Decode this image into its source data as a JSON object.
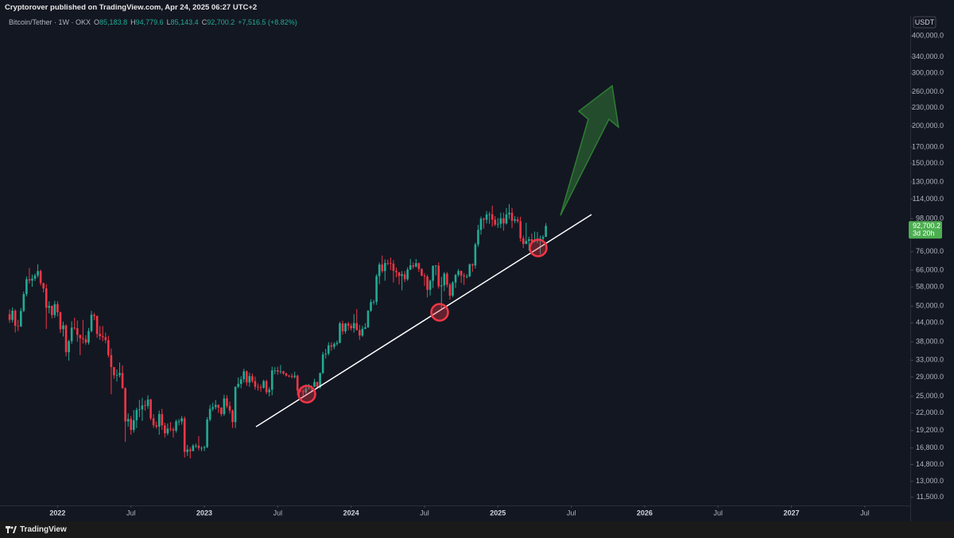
{
  "header": {
    "publisher": "Cryptorover published on TradingView.com, Apr 24, 2025 06:27 UTC+2"
  },
  "footer": {
    "brand": "TradingView"
  },
  "chart_data": {
    "type": "candlestick",
    "title": "Bitcoin/Tether · 1W · OKX",
    "ohlc": [
      {
        "key": "O",
        "label": "85,183.8"
      },
      {
        "key": "H",
        "label": "94,779.6"
      },
      {
        "key": "L",
        "label": "85,143.4"
      },
      {
        "key": "C",
        "label": "92,700.2"
      }
    ],
    "change": "+7,516.5 (+8.82%)",
    "currency": "USDT",
    "price_tag": {
      "label": "92,700.2",
      "countdown": "3d 20h"
    },
    "up_color": "#22ab94",
    "down_color": "#f23645",
    "log_scale": true,
    "grid": false,
    "ylim": [
      10800,
      527000
    ],
    "yticks": [
      {
        "value": 400000,
        "label": "400,000.0"
      },
      {
        "value": 340000,
        "label": "340,000.0"
      },
      {
        "value": 300000,
        "label": "300,000.0"
      },
      {
        "value": 260000,
        "label": "260,000.0"
      },
      {
        "value": 230000,
        "label": "230,000.0"
      },
      {
        "value": 200000,
        "label": "200,000.0"
      },
      {
        "value": 170000,
        "label": "170,000.0"
      },
      {
        "value": 150000,
        "label": "150,000.0"
      },
      {
        "value": 130000,
        "label": "130,000.0"
      },
      {
        "value": 114000,
        "label": "114,000.0"
      },
      {
        "value": 98000,
        "label": "98,000.0"
      },
      {
        "value": 76000,
        "label": "76,000.0"
      },
      {
        "value": 66000,
        "label": "66,000.0"
      },
      {
        "value": 58000,
        "label": "58,000.0"
      },
      {
        "value": 50000,
        "label": "50,000.0"
      },
      {
        "value": 44000,
        "label": "44,000.0"
      },
      {
        "value": 38000,
        "label": "38,000.0"
      },
      {
        "value": 33000,
        "label": "33,000.0"
      },
      {
        "value": 29000,
        "label": "29,000.0"
      },
      {
        "value": 25000,
        "label": "25,000.0"
      },
      {
        "value": 22000,
        "label": "22,000.0"
      },
      {
        "value": 19200,
        "label": "19,200.0"
      },
      {
        "value": 16800,
        "label": "16,800.0"
      },
      {
        "value": 14800,
        "label": "14,800.0"
      },
      {
        "value": 13000,
        "label": "13,000.0"
      },
      {
        "value": 11500,
        "label": "11,500.0"
      }
    ],
    "xlim": [
      -3.4,
      319.1
    ],
    "xticks": [
      {
        "value": 17,
        "label": "2022"
      },
      {
        "value": 43,
        "label": "Jul"
      },
      {
        "value": 69,
        "label": "2023"
      },
      {
        "value": 95,
        "label": "Jul"
      },
      {
        "value": 121,
        "label": "2024"
      },
      {
        "value": 147,
        "label": "Jul"
      },
      {
        "value": 173,
        "label": "2025"
      },
      {
        "value": 199,
        "label": "Jul"
      },
      {
        "value": 225,
        "label": "2026"
      },
      {
        "value": 251,
        "label": "Jul"
      },
      {
        "value": 277,
        "label": "2027"
      },
      {
        "value": 303,
        "label": "Jul"
      }
    ],
    "series": [
      {
        "open": [
          47000,
          45000,
          48300,
          43000,
          42800,
          48200,
          54900,
          61500,
          60900,
          61800,
          63300,
          65500,
          59700,
          57300,
          49400,
          50100,
          46700,
          50800,
          47700,
          41900,
          43100,
          35100,
          38200,
          42400,
          42200,
          40100,
          39100,
          38800,
          37800,
          41300,
          46800,
          46400,
          40400,
          39700,
          39400,
          38500,
          34300,
          31300,
          29400,
          29400,
          29900,
          26600,
          20600,
          21000,
          19300,
          20800,
          22500,
          22600,
          23300,
          23200,
          24400,
          21100,
          20000,
          19800,
          21800,
          20000,
          18800,
          19500,
          19400,
          19200,
          20600,
          20600,
          21100,
          16300,
          16600,
          16400,
          17100,
          17100,
          16800,
          16800,
          16900,
          20900,
          22700,
          23000,
          23400,
          22900,
          21800,
          24600,
          23200,
          22400,
          20500,
          26900,
          27500,
          28500,
          30300,
          27800,
          29200,
          28100,
          26900,
          26800,
          26700,
          28100,
          25800,
          26300,
          30500,
          30500,
          30200,
          30300,
          29800,
          29300,
          29200,
          29000,
          29300,
          26100,
          26000,
          25800,
          26500,
          26600,
          26900,
          27900,
          26800,
          29900,
          34500,
          34700,
          37000,
          36600,
          37400,
          37700,
          43800,
          41200,
          43700,
          43000,
          42200,
          43900,
          41600,
          39900,
          42000,
          42500,
          48300,
          51600,
          51700,
          63000,
          68900,
          65500,
          69700,
          69600,
          69300,
          65600,
          64900,
          63100,
          63900,
          61500,
          66300,
          68500,
          67800,
          69600,
          66600,
          63200,
          62800,
          56700,
          60800,
          68200,
          68300,
          58200,
          58700,
          64200,
          59000,
          54200,
          60000,
          63600,
          65600,
          63300,
          62800,
          62900,
          69000,
          68400,
          80400,
          89900,
          98000,
          97200,
          101200,
          101400,
          97300,
          93700,
          94200,
          98300,
          94500,
          101300,
          102600,
          96500,
          97500,
          96100,
          84300,
          80700,
          82600,
          83700,
          82300,
          82600,
          83100,
          84000,
          85183.8
        ],
        "high": [
          48800,
          49500,
          48800,
          45000,
          49300,
          56000,
          62900,
          67000,
          63700,
          64300,
          69000,
          66300,
          59900,
          59200,
          51900,
          50300,
          52100,
          51900,
          48000,
          44400,
          43500,
          38600,
          44500,
          45800,
          44800,
          40100,
          45000,
          40000,
          42300,
          48200,
          47500,
          46500,
          42900,
          42900,
          40800,
          39800,
          36100,
          31300,
          30700,
          32400,
          31700,
          26800,
          21900,
          21500,
          22500,
          22900,
          24300,
          24700,
          24200,
          25200,
          24500,
          21800,
          20600,
          22400,
          22700,
          20400,
          20300,
          20500,
          19700,
          20900,
          21000,
          21500,
          21400,
          17200,
          16900,
          17300,
          17400,
          18400,
          17000,
          17100,
          21300,
          23400,
          23800,
          24300,
          23500,
          23000,
          25300,
          25200,
          24000,
          22600,
          27000,
          28900,
          29200,
          30900,
          30500,
          30000,
          29800,
          29100,
          27600,
          27400,
          28400,
          28400,
          26800,
          31400,
          31300,
          31400,
          31800,
          30400,
          30000,
          29500,
          29800,
          30200,
          29500,
          26800,
          26400,
          27400,
          27500,
          27200,
          28600,
          28000,
          30000,
          35200,
          36000,
          37900,
          37900,
          37900,
          38400,
          44400,
          44700,
          44000,
          44300,
          43800,
          47000,
          48900,
          43300,
          43000,
          43900,
          48500,
          52800,
          52500,
          64000,
          69900,
          73800,
          71700,
          71600,
          72700,
          71300,
          67300,
          64900,
          65500,
          65500,
          67400,
          71900,
          70000,
          71900,
          70000,
          66900,
          64500,
          63700,
          61400,
          68400,
          68600,
          70000,
          62700,
          65000,
          65000,
          59800,
          60600,
          64100,
          66500,
          65600,
          64500,
          64000,
          69400,
          69500,
          81500,
          93500,
          99600,
          98900,
          104000,
          103300,
          108400,
          100000,
          98500,
          102700,
          102700,
          106400,
          109600,
          106500,
          100000,
          99500,
          99500,
          86000,
          95000,
          85300,
          87500,
          88800,
          88500,
          86100,
          86500,
          94779.6
        ],
        "low": [
          44000,
          44100,
          40800,
          41300,
          42600,
          47800,
          53900,
          59500,
          58000,
          60700,
          62300,
          58600,
          55600,
          42000,
          47300,
          45500,
          45700,
          46200,
          40700,
          39600,
          34000,
          32900,
          37400,
          41700,
          38000,
          34300,
          37500,
          37200,
          37200,
          40900,
          44900,
          39200,
          38600,
          38200,
          37600,
          33700,
          25400,
          28600,
          28000,
          28900,
          26500,
          17600,
          19800,
          18600,
          18900,
          19600,
          21300,
          20700,
          22400,
          22700,
          20800,
          19600,
          19500,
          18600,
          19300,
          18200,
          18500,
          19100,
          18200,
          18900,
          20000,
          20100,
          15600,
          15800,
          15500,
          16400,
          16800,
          16500,
          16400,
          16400,
          16800,
          20600,
          22300,
          22600,
          22000,
          21400,
          21500,
          22800,
          21900,
          19600,
          19600,
          26600,
          26600,
          27800,
          27100,
          26900,
          27700,
          26300,
          26100,
          25900,
          26500,
          25400,
          25000,
          25200,
          29600,
          29500,
          29700,
          29500,
          29100,
          28900,
          28700,
          28700,
          25200,
          25800,
          24900,
          25400,
          26400,
          26000,
          26800,
          26600,
          26500,
          29700,
          33400,
          34200,
          35500,
          35900,
          36900,
          37600,
          40200,
          40500,
          41500,
          41400,
          40800,
          41500,
          38600,
          39500,
          41900,
          42300,
          47800,
          50600,
          50500,
          59200,
          64600,
          60800,
          68500,
          66000,
          60000,
          62400,
          59100,
          56500,
          60200,
          60800,
          66000,
          66600,
          67400,
          65100,
          63000,
          58400,
          53500,
          54300,
          57500,
          63400,
          57200,
          49100,
          56100,
          57800,
          52600,
          53600,
          57500,
          62700,
          59800,
          58900,
          61900,
          62500,
          65200,
          66800,
          78900,
          86700,
          90800,
          94500,
          94200,
          92200,
          92500,
          91300,
          91200,
          89300,
          93700,
          97800,
          91200,
          94700,
          94800,
          82200,
          78200,
          80600,
          76600,
          81300,
          81600,
          81200,
          74500,
          83100,
          85143.4
        ],
        "close": [
          45000,
          48300,
          43000,
          42800,
          48200,
          54900,
          61500,
          60900,
          61800,
          63300,
          65500,
          59700,
          57300,
          49400,
          50100,
          46700,
          50800,
          47700,
          41900,
          43100,
          35100,
          38200,
          42400,
          42200,
          40100,
          39100,
          38800,
          37800,
          41300,
          46800,
          46400,
          40400,
          39700,
          39400,
          38500,
          34300,
          31300,
          29400,
          29400,
          29900,
          26600,
          20600,
          21000,
          19300,
          20800,
          22500,
          22600,
          23300,
          23200,
          24400,
          21100,
          20000,
          19800,
          21800,
          20000,
          18800,
          19500,
          19400,
          19200,
          20600,
          20600,
          21100,
          16300,
          16600,
          16400,
          17100,
          17100,
          16800,
          16800,
          16900,
          20900,
          22700,
          23000,
          23400,
          22900,
          21800,
          24600,
          23200,
          22400,
          20500,
          26900,
          27500,
          28500,
          30300,
          27800,
          29200,
          28100,
          26900,
          26800,
          26700,
          28100,
          25800,
          26300,
          30500,
          30500,
          30200,
          30300,
          29800,
          29300,
          29200,
          29000,
          29300,
          26100,
          26000,
          25800,
          26500,
          26600,
          26900,
          27900,
          26800,
          29900,
          34500,
          34700,
          37000,
          36600,
          37400,
          37700,
          43800,
          41200,
          43700,
          43000,
          42200,
          43900,
          41600,
          39900,
          42000,
          42500,
          48300,
          51600,
          51700,
          63000,
          68900,
          65500,
          69700,
          69600,
          69300,
          65600,
          64900,
          63100,
          63900,
          61500,
          66300,
          68500,
          67800,
          69600,
          66600,
          63200,
          62800,
          56700,
          60800,
          68200,
          68300,
          58200,
          58700,
          64200,
          59000,
          54200,
          60000,
          63600,
          65600,
          63300,
          62800,
          62900,
          69000,
          68400,
          80400,
          89900,
          98000,
          97200,
          101200,
          101400,
          97300,
          93700,
          94200,
          98300,
          94500,
          101300,
          102600,
          96500,
          97500,
          96100,
          84300,
          80700,
          82600,
          83700,
          82300,
          82600,
          83100,
          84000,
          85200,
          92700.2
        ]
      }
    ]
  }
}
